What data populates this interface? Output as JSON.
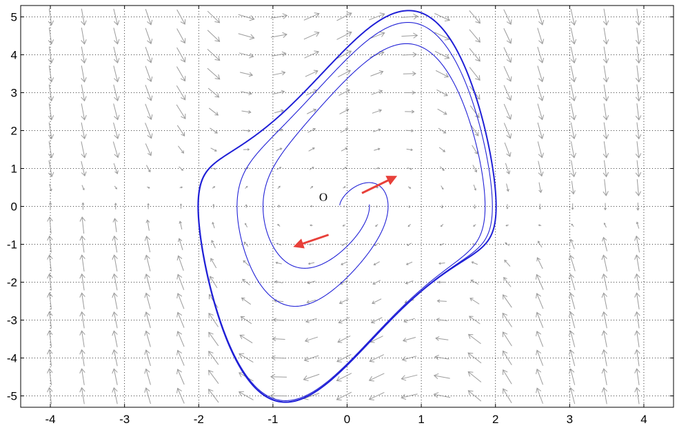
{
  "chart_data": {
    "type": "line",
    "title": "",
    "xlabel": "",
    "ylabel": "",
    "xlim": [
      -4.4,
      4.4
    ],
    "ylim": [
      -5.3,
      5.3
    ],
    "xticks": [
      -4,
      -3,
      -2,
      -1,
      0,
      1,
      2,
      3,
      4
    ],
    "yticks": [
      -5,
      -4,
      -3,
      -2,
      -1,
      0,
      1,
      2,
      3,
      4,
      5
    ],
    "xtick_labels": [
      "-4",
      "-3",
      "-2",
      "-1",
      "0",
      "1",
      "2",
      "3",
      "4"
    ],
    "ytick_labels": [
      "-5",
      "-4",
      "-3",
      "-2",
      "-1",
      "0",
      "1",
      "2",
      "3",
      "4",
      "5"
    ],
    "grid": true,
    "legend": "none",
    "annotations": [
      {
        "text": "O",
        "x": -0.32,
        "y": 0.15
      }
    ],
    "vector_field": {
      "system": "dx/dt = y, dy/dt = mu*(1 - x^2)*y - x",
      "mu": 1,
      "x_spacing": 0.44,
      "y_spacing": 0.5,
      "color": "#9a9a9a"
    },
    "series": [
      {
        "kind": "trajectories",
        "color": "#1f1fd6",
        "initial_conditions": [
          {
            "x": -0.1,
            "y": 0.03
          },
          {
            "x": 0.3,
            "y": 0.05
          }
        ],
        "limit_cycle_amplitude": 2.0,
        "limit_cycle_peak_y": 5.15
      }
    ],
    "direction_arrows": [
      {
        "from": [
          0.2,
          0.35
        ],
        "to": [
          0.65,
          0.78
        ],
        "color": "#e8403a"
      },
      {
        "from": [
          -0.25,
          -0.75
        ],
        "to": [
          -0.7,
          -1.05
        ],
        "color": "#e8403a"
      }
    ]
  }
}
